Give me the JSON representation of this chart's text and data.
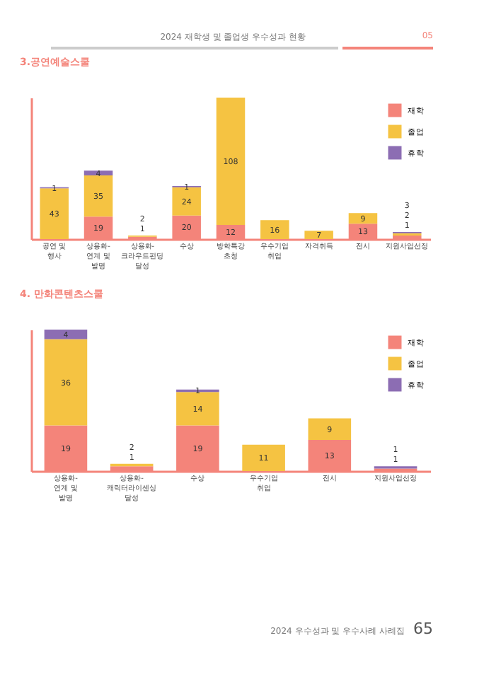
{
  "chart_data": [
    {
      "type": "bar",
      "title": "3.공연예술스쿨",
      "annotations": [
        "2024 재학생 및 졸업생 우수성과 현황",
        "05"
      ],
      "stacked": true,
      "data_labels": true,
      "legend": "top right",
      "tick_labels": "x",
      "categories": [
        "공연 및 행사",
        "상용화-\n연계 및 발명",
        "상용화-\n크라우드펀딩\n달성",
        "수상",
        "방학특강 초청",
        "우수기업 취업",
        "자격취득",
        "전시",
        "지원사업선정"
      ],
      "series": [
        {
          "name": "재학",
          "color": "#f4847a",
          "values": [
            null,
            19,
            2,
            20,
            12,
            null,
            null,
            13,
            3
          ]
        },
        {
          "name": "졸업",
          "color": "#f5c342",
          "values": [
            43,
            35,
            1,
            24,
            108,
            16,
            7,
            9,
            2
          ]
        },
        {
          "name": "휴학",
          "color": "#8c6db3",
          "values": [
            1,
            4,
            null,
            1,
            null,
            null,
            null,
            null,
            1
          ]
        }
      ]
    },
    {
      "type": "bar",
      "title": "4. 만화콘텐츠스쿨",
      "annotations": [
        "2024 우수성과 및 우수사례 사례집",
        "65"
      ],
      "stacked": true,
      "data_labels": true,
      "legend": "top right",
      "tick_labels": "x",
      "categories": [
        "상용화-\n연계 및 발명",
        "상용화-\n캐릭터라이센싱 달성",
        "수상",
        "우수기업 취업",
        "전시",
        "지원사업선정"
      ],
      "series": [
        {
          "name": "재학",
          "color": "#f4847a",
          "values": [
            19,
            2,
            19,
            null,
            13,
            1
          ]
        },
        {
          "name": "졸업",
          "color": "#f5c342",
          "values": [
            36,
            1,
            14,
            11,
            9,
            null
          ]
        },
        {
          "name": "휴학",
          "color": "#8c6db3",
          "values": [
            4,
            null,
            1,
            null,
            null,
            1
          ]
        }
      ]
    }
  ]
}
